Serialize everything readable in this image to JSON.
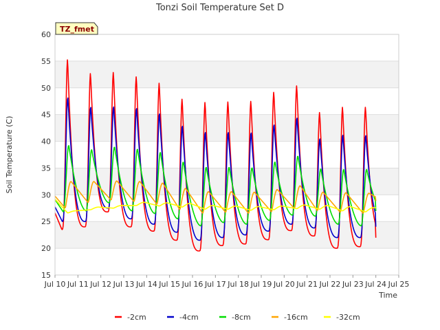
{
  "chart_data": {
    "type": "line",
    "title": "Tonzi Soil Temperature Set D",
    "xlabel": "Time",
    "ylabel": "Soil Temperature (C)",
    "ylim": [
      15,
      60
    ],
    "y_ticks": [
      15,
      20,
      25,
      30,
      35,
      40,
      45,
      50,
      55,
      60
    ],
    "x_ticks": [
      "Jul 10",
      "Jul 11",
      "Jul 12",
      "Jul 13",
      "Jul 14",
      "Jul 15",
      "Jul 16",
      "Jul 17",
      "Jul 18",
      "Jul 19",
      "Jul 20",
      "Jul 21",
      "Jul 22",
      "Jul 23",
      "Jul 24",
      "Jul 25"
    ],
    "xlim": [
      "Jul 10",
      "Jul 25"
    ],
    "grid": true,
    "legend_position": "bottom",
    "badge": "TZ_fmet",
    "series": [
      {
        "name": "-2cm",
        "color": "#ff0000",
        "daily_max": [
          55.4,
          52.8,
          53.0,
          52.2,
          51.0,
          48.0,
          47.4,
          47.5,
          47.6,
          49.3,
          50.5,
          45.5,
          46.5,
          46.5
        ],
        "daily_min": [
          23.5,
          24.0,
          26.8,
          24.0,
          23.2,
          21.5,
          19.5,
          20.5,
          20.8,
          21.6,
          23.3,
          22.3,
          20.0,
          20.3
        ],
        "end_value": 22.8
      },
      {
        "name": "-4cm",
        "color": "#0000cc",
        "daily_max": [
          48.3,
          46.5,
          46.6,
          46.3,
          45.3,
          43.0,
          41.8,
          41.8,
          41.7,
          43.2,
          44.5,
          40.6,
          41.3,
          41.2
        ],
        "daily_min": [
          25.0,
          25.0,
          27.5,
          25.5,
          24.5,
          23.0,
          21.5,
          22.0,
          22.5,
          23.2,
          24.5,
          23.8,
          22.0,
          22.0
        ],
        "end_value": 24.5
      },
      {
        "name": "-8cm",
        "color": "#00dd00",
        "daily_max": [
          39.3,
          38.5,
          39.0,
          38.6,
          38.0,
          36.2,
          35.2,
          35.2,
          35.1,
          36.2,
          37.3,
          34.9,
          34.8,
          34.8
        ],
        "daily_min": [
          26.8,
          27.0,
          28.5,
          27.0,
          26.5,
          25.5,
          24.2,
          24.8,
          24.5,
          25.2,
          26.2,
          26.0,
          24.5,
          24.2
        ],
        "end_value": 26.5
      },
      {
        "name": "-16cm",
        "color": "#ffa500",
        "daily_max": [
          32.5,
          32.5,
          32.6,
          32.5,
          32.2,
          31.2,
          30.6,
          30.6,
          30.5,
          31.0,
          31.7,
          30.5,
          30.4,
          30.3
        ],
        "daily_min": [
          27.5,
          28.5,
          29.0,
          28.7,
          28.2,
          27.2,
          26.5,
          26.7,
          26.5,
          26.8,
          27.4,
          27.0,
          26.7,
          26.5
        ],
        "end_value": 28.5
      },
      {
        "name": "-32cm",
        "color": "#ffff00",
        "daily_max": [
          27.0,
          27.7,
          28.0,
          28.6,
          28.5,
          28.4,
          28.0,
          27.9,
          27.8,
          27.9,
          28.1,
          28.0,
          27.8,
          27.6
        ],
        "daily_min": [
          26.6,
          27.2,
          27.5,
          28.0,
          27.9,
          27.7,
          27.3,
          27.3,
          27.1,
          27.2,
          27.4,
          27.3,
          27.0,
          26.8
        ],
        "end_value": 27.3
      }
    ]
  }
}
